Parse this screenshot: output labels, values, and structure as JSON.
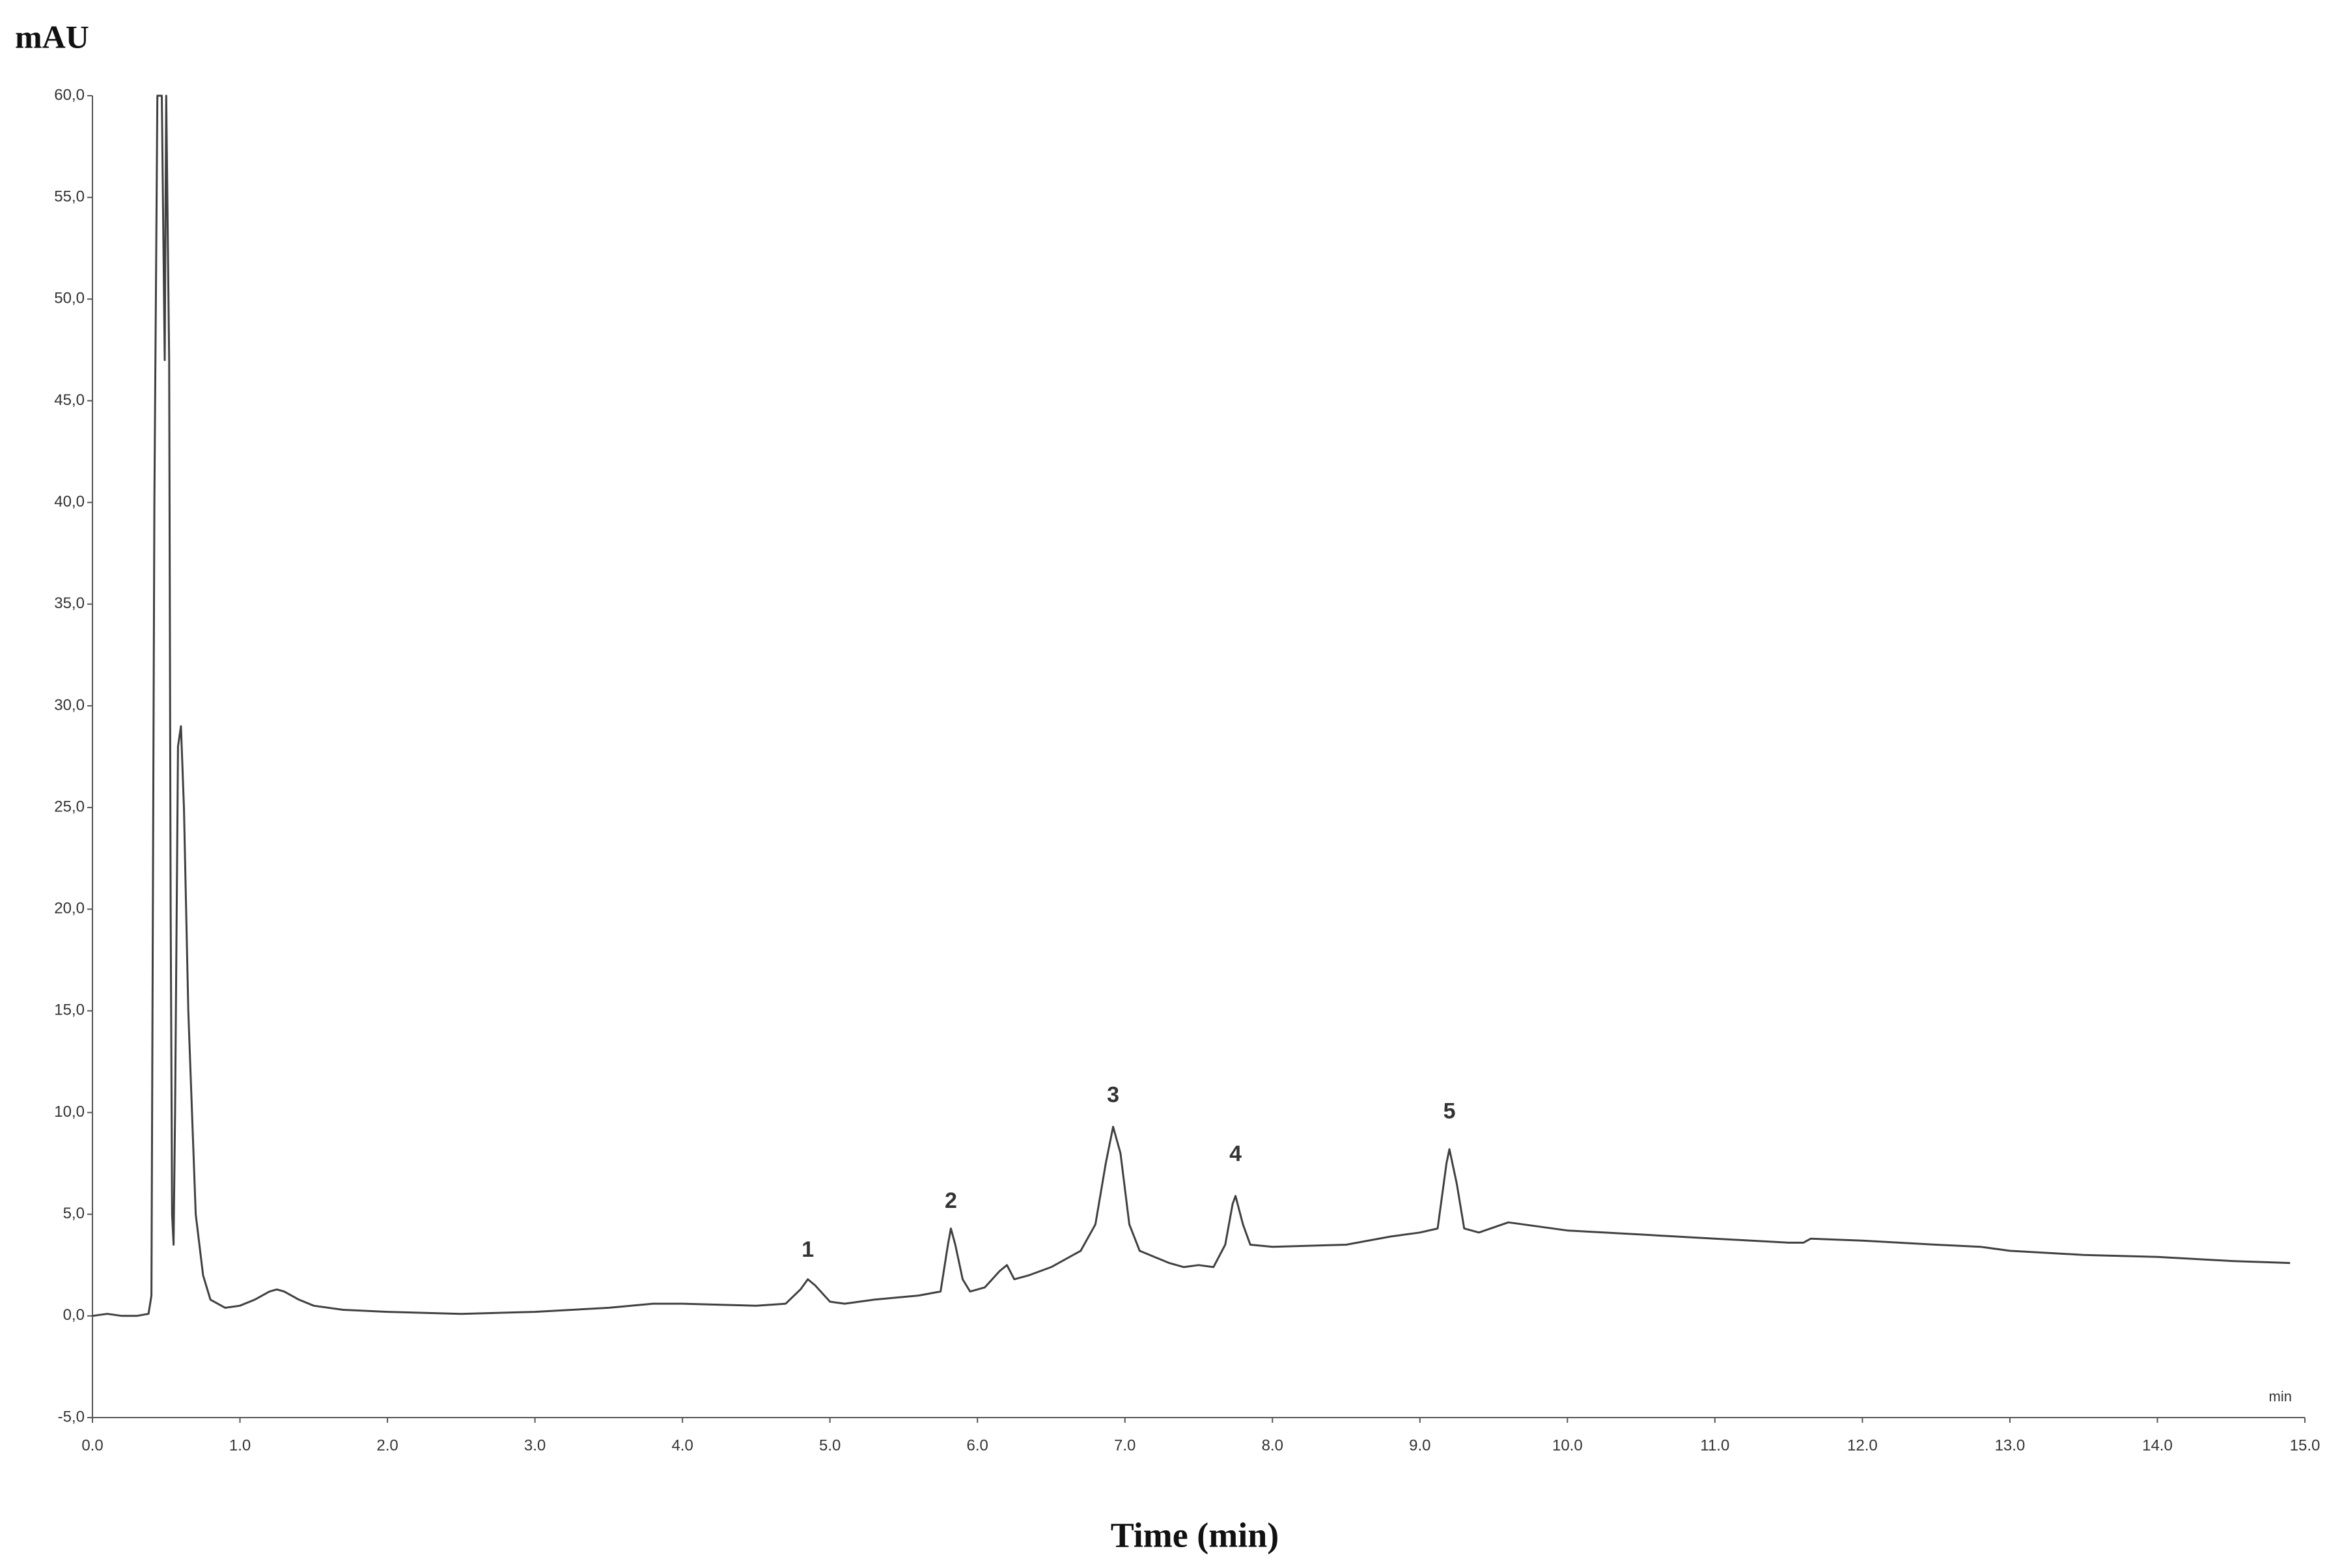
{
  "chart_data": {
    "type": "line",
    "y_label": "mAU",
    "x_label": "Time (min)",
    "x_unit_label": "min",
    "color": "#404040",
    "xlim": [
      0,
      15
    ],
    "ylim": [
      -5,
      60
    ],
    "xticks": [
      {
        "value": 0,
        "label": "0.0"
      },
      {
        "value": 1,
        "label": "1.0"
      },
      {
        "value": 2,
        "label": "2.0"
      },
      {
        "value": 3,
        "label": "3.0"
      },
      {
        "value": 4,
        "label": "4.0"
      },
      {
        "value": 5,
        "label": "5.0"
      },
      {
        "value": 6,
        "label": "6.0"
      },
      {
        "value": 7,
        "label": "7.0"
      },
      {
        "value": 8,
        "label": "8.0"
      },
      {
        "value": 9,
        "label": "9.0"
      },
      {
        "value": 10,
        "label": "10.0"
      },
      {
        "value": 11,
        "label": "11.0"
      },
      {
        "value": 12,
        "label": "12.0"
      },
      {
        "value": 13,
        "label": "13.0"
      },
      {
        "value": 14,
        "label": "14.0"
      },
      {
        "value": 15,
        "label": "15.0"
      }
    ],
    "yticks": [
      {
        "value": -5,
        "label": "-5,0"
      },
      {
        "value": 0,
        "label": "0,0"
      },
      {
        "value": 5,
        "label": "5,0"
      },
      {
        "value": 10,
        "label": "10,0"
      },
      {
        "value": 15,
        "label": "15,0"
      },
      {
        "value": 20,
        "label": "20,0"
      },
      {
        "value": 25,
        "label": "25,0"
      },
      {
        "value": 30,
        "label": "30,0"
      },
      {
        "value": 35,
        "label": "35,0"
      },
      {
        "value": 40,
        "label": "40,0"
      },
      {
        "value": 45,
        "label": "45,0"
      },
      {
        "value": 50,
        "label": "50,0"
      },
      {
        "value": 55,
        "label": "55,0"
      },
      {
        "value": 60,
        "label": "60,0"
      }
    ],
    "x": [
      0,
      0.1,
      0.2,
      0.3,
      0.38,
      0.4,
      0.42,
      0.44,
      0.47,
      0.49,
      0.5,
      0.52,
      0.53,
      0.54,
      0.55,
      0.56,
      0.58,
      0.6,
      0.62,
      0.65,
      0.7,
      0.75,
      0.8,
      0.9,
      1.0,
      1.1,
      1.2,
      1.25,
      1.3,
      1.4,
      1.5,
      1.7,
      2.0,
      2.5,
      3.0,
      3.5,
      3.8,
      4.0,
      4.5,
      4.7,
      4.8,
      4.85,
      4.9,
      5.0,
      5.1,
      5.3,
      5.6,
      5.75,
      5.8,
      5.82,
      5.85,
      5.9,
      5.95,
      6.05,
      6.15,
      6.2,
      6.25,
      6.35,
      6.5,
      6.7,
      6.8,
      6.87,
      6.92,
      6.97,
      7.03,
      7.1,
      7.3,
      7.4,
      7.5,
      7.6,
      7.68,
      7.73,
      7.75,
      7.8,
      7.85,
      8.0,
      8.5,
      8.8,
      9.0,
      9.12,
      9.18,
      9.2,
      9.25,
      9.3,
      9.4,
      9.6,
      10.0,
      10.5,
      11.0,
      11.5,
      11.6,
      11.65,
      12.0,
      12.5,
      12.8,
      13.0,
      13.5,
      14.0,
      14.5,
      14.9
    ],
    "values": [
      0,
      0.1,
      0,
      0,
      0.1,
      1,
      40,
      60,
      60,
      47,
      60,
      47,
      20,
      5,
      3.5,
      10,
      28,
      29,
      25,
      15,
      5,
      2,
      0.8,
      0.4,
      0.5,
      0.8,
      1.2,
      1.3,
      1.2,
      0.8,
      0.5,
      0.3,
      0.2,
      0.1,
      0.2,
      0.4,
      0.6,
      0.6,
      0.5,
      0.6,
      1.3,
      1.8,
      1.5,
      0.7,
      0.6,
      0.8,
      1.0,
      1.2,
      3.5,
      4.3,
      3.5,
      1.8,
      1.2,
      1.4,
      2.2,
      2.5,
      1.8,
      2.0,
      2.4,
      3.2,
      4.5,
      7.5,
      9.3,
      8,
      4.5,
      3.2,
      2.6,
      2.4,
      2.5,
      2.4,
      3.5,
      5.5,
      5.9,
      4.5,
      3.5,
      3.4,
      3.5,
      3.9,
      4.1,
      4.3,
      7.5,
      8.2,
      6.5,
      4.3,
      4.1,
      4.6,
      4.2,
      4.0,
      3.8,
      3.6,
      3.6,
      3.8,
      3.7,
      3.5,
      3.4,
      3.2,
      3.0,
      2.9,
      2.7,
      2.6
    ],
    "annotations": [
      {
        "text": "1",
        "x": 4.85,
        "y": 3.2
      },
      {
        "text": "2",
        "x": 5.82,
        "y": 5.6
      },
      {
        "text": "3",
        "x": 6.92,
        "y": 10.8
      },
      {
        "text": "4",
        "x": 7.75,
        "y": 7.9
      },
      {
        "text": "5",
        "x": 9.2,
        "y": 10.0
      }
    ]
  }
}
